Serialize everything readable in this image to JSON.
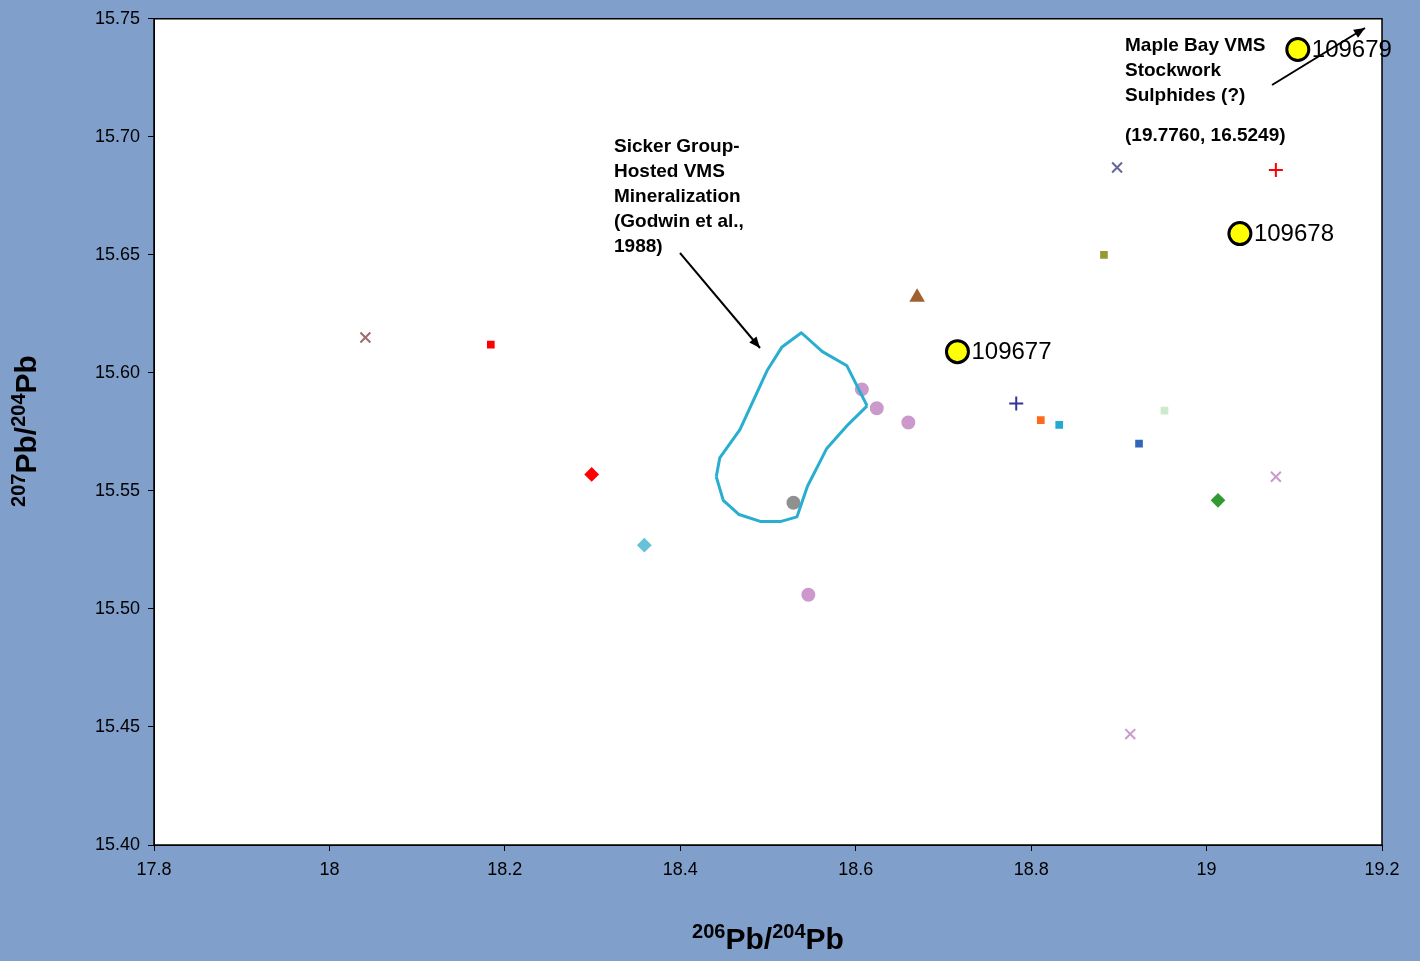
{
  "chart_data": {
    "type": "scatter",
    "xlabel": "$^{206}$Pb/$^{204}$Pb",
    "ylabel": "$^{207}$Pb/$^{204}$Pb",
    "xlim": [
      17.8,
      19.2
    ],
    "xticks": [
      17.8,
      18,
      18.2,
      18.4,
      18.6,
      18.8,
      19,
      19.2
    ],
    "ylim": [
      15.4,
      15.75
    ],
    "yticks": [
      {
        "value": 15.4,
        "label": "15.40"
      },
      15.45,
      {
        "value": 15.5,
        "label": "15.50"
      },
      15.55,
      {
        "value": 15.6,
        "label": "15.60"
      },
      15.65,
      {
        "value": 15.7,
        "label": "15.70"
      },
      15.75
    ],
    "grid": false,
    "legend": false,
    "series": [
      {
        "type": "line",
        "color": "#2aaed0",
        "marker": "none",
        "x": [
          18.441,
          18.445,
          18.468,
          18.499,
          18.516,
          18.538,
          18.562,
          18.59,
          18.613
        ],
        "values": [
          15.556,
          15.564,
          15.576,
          15.601,
          15.611,
          15.617,
          15.609,
          15.603,
          15.586
        ]
      },
      {
        "type": "line",
        "color": "#2aaed0",
        "marker": "none",
        "x": [
          18.441,
          18.449,
          18.467,
          18.492,
          18.514,
          18.533,
          18.545,
          18.567,
          18.591,
          18.613
        ],
        "values": [
          15.556,
          15.546,
          15.54,
          15.537,
          15.537,
          15.539,
          15.552,
          15.568,
          15.578,
          15.586
        ]
      },
      {
        "type": "scatter",
        "color": "#9c6b6b",
        "marker": "cross",
        "x": [
          18.041
        ],
        "values": [
          15.615
        ]
      },
      {
        "type": "scatter",
        "color": "#ff0000",
        "marker": "square",
        "x": [
          18.184
        ],
        "values": [
          15.612
        ]
      },
      {
        "type": "scatter",
        "color": "#ff0000",
        "marker": "diamond",
        "x": [
          18.299
        ],
        "values": [
          15.557
        ]
      },
      {
        "type": "scatter",
        "color": "#66c2d8",
        "marker": "diamond",
        "x": [
          18.359
        ],
        "values": [
          15.527
        ]
      },
      {
        "type": "scatter",
        "color": "#909090",
        "marker": "circle",
        "x": [
          18.529
        ],
        "values": [
          15.545
        ]
      },
      {
        "type": "scatter",
        "color": "#cc99cc",
        "marker": "circle",
        "x": [
          18.546,
          18.607,
          18.624,
          18.66
        ],
        "values": [
          15.506,
          15.593,
          15.585,
          15.579
        ]
      },
      {
        "type": "scatter",
        "color": "#a0622d",
        "marker": "triangle",
        "x": [
          18.67
        ],
        "values": [
          15.632
        ]
      },
      {
        "type": "scatter",
        "color": "#333399",
        "marker": "plus",
        "x": [
          18.783
        ],
        "values": [
          15.587
        ]
      },
      {
        "type": "scatter",
        "color": "#ff6a1a",
        "marker": "square",
        "x": [
          18.811
        ],
        "values": [
          15.58
        ]
      },
      {
        "type": "scatter",
        "color": "#22aad0",
        "marker": "square",
        "x": [
          18.832
        ],
        "values": [
          15.578
        ]
      },
      {
        "type": "scatter",
        "color": "#999933",
        "marker": "square",
        "x": [
          18.883
        ],
        "values": [
          15.65
        ]
      },
      {
        "type": "scatter",
        "color": "#666699",
        "marker": "cross",
        "x": [
          18.898
        ],
        "values": [
          15.687
        ]
      },
      {
        "type": "scatter",
        "color": "#3366bb",
        "marker": "square",
        "x": [
          18.923
        ],
        "values": [
          15.57
        ]
      },
      {
        "type": "scatter",
        "color": "#cc99cc",
        "marker": "cross",
        "x": [
          18.913,
          19.079
        ],
        "values": [
          15.447,
          15.556
        ]
      },
      {
        "type": "scatter",
        "color": "#ccebcc",
        "marker": "square",
        "x": [
          18.952
        ],
        "values": [
          15.584
        ]
      },
      {
        "type": "scatter",
        "color": "#339933",
        "marker": "diamond",
        "x": [
          19.013
        ],
        "values": [
          15.546
        ]
      },
      {
        "type": "scatter",
        "color": "#ff0000",
        "marker": "plus",
        "x": [
          19.079
        ],
        "values": [
          15.686
        ]
      },
      {
        "type": "scatter",
        "color": "#ffff00",
        "marker": "circle",
        "x": [
          18.716,
          19.038,
          19.104
        ],
        "values": [
          15.609,
          15.659,
          15.737
        ]
      }
    ],
    "annotations": [
      "Sicker Group-Hosted VMS Mineralization (Godwin et al., 1988)",
      "Maple Bay VMS Stockwork Sulphides (?)",
      "(19.7760, 16.5249)",
      {
        "text": "109677",
        "x": 18.716,
        "y": 15.609
      },
      {
        "text": "109678",
        "x": 19.038,
        "y": 15.659
      },
      {
        "text": "109679",
        "x": 19.104,
        "y": 15.737
      }
    ]
  }
}
